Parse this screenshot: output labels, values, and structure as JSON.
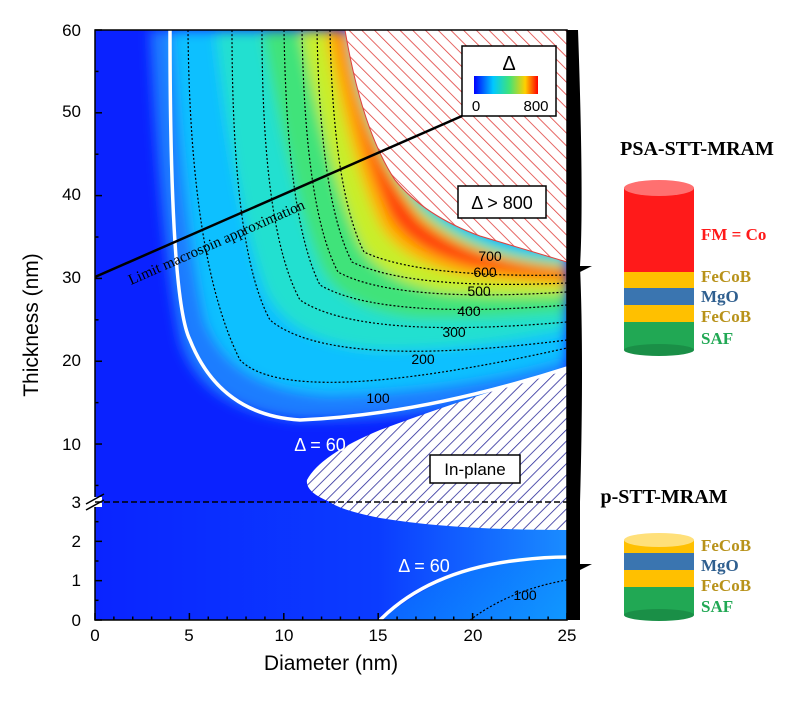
{
  "chart_data": {
    "type": "heatmap",
    "xlabel": "Diameter (nm)",
    "ylabel": "Thickness (nm)",
    "x_ticks": [
      "0",
      "5",
      "10",
      "15",
      "20",
      "25"
    ],
    "y_ticks_upper": [
      "10",
      "20",
      "30",
      "40",
      "50",
      "60"
    ],
    "y_ticks_lower": [
      "0",
      "1",
      "2",
      "3"
    ],
    "xlim": [
      0,
      25
    ],
    "ylim_upper": [
      3,
      60
    ],
    "ylim_lower": [
      0,
      3
    ],
    "axis_break": 3,
    "colorbar": {
      "title": "Δ",
      "min": "0",
      "max": "800"
    },
    "contour_levels": [
      100,
      200,
      300,
      400,
      500,
      600,
      700
    ],
    "contour_labels": [
      "100",
      "200",
      "300",
      "400",
      "500",
      "600",
      "700"
    ],
    "contour_labels_lower": [
      "100"
    ],
    "stability_contour_label": "Δ = 60",
    "stability_contour_label_lower": "Δ = 60",
    "hatched_region_high": "Δ > 800",
    "hatched_region_inplane": "In-plane",
    "annotation_line": "Limit macrospin approximation",
    "colors": {
      "low": "#0a2fff",
      "mid": "#3fe37a",
      "high": "#ff2a00",
      "hatch_high": "#e0403c",
      "hatch_inplane": "#2a2a9a"
    }
  },
  "stacks": {
    "psa": {
      "title": "PSA-STT-MRAM",
      "layers": [
        "FM = Co",
        "FeCoB",
        "MgO",
        "FeCoB",
        "SAF"
      ]
    },
    "p": {
      "title": "p-STT-MRAM",
      "layers": [
        "FeCoB",
        "MgO",
        "FeCoB",
        "SAF"
      ]
    }
  }
}
